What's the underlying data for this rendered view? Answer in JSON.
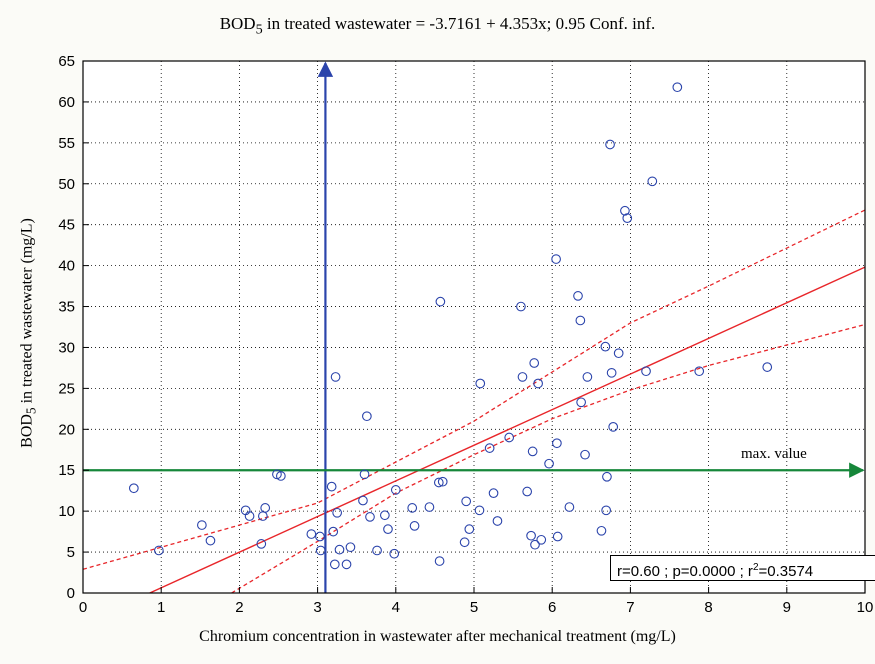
{
  "chart_data": {
    "type": "scatter",
    "title": {
      "prefix": "BOD",
      "sub": "5",
      "suffix": " in treated wastewater = -3.7161 + 4.353x; 0.95 Conf. inf."
    },
    "xlabel": "Chromium concentration in wastewater after mechanical treatment (mg/L)",
    "ylabel": {
      "prefix": "BOD",
      "sub": "5",
      "suffix": " in treated wastewater (mg/L)"
    },
    "xlim": [
      0,
      10
    ],
    "ylim": [
      0,
      65
    ],
    "xticks": [
      0,
      1,
      2,
      3,
      4,
      5,
      6,
      7,
      8,
      9,
      10
    ],
    "yticks": [
      0,
      5,
      10,
      15,
      20,
      25,
      30,
      35,
      40,
      45,
      50,
      55,
      60,
      65
    ],
    "grid": true,
    "grid_style": "dotted",
    "regression": {
      "intercept": -3.7161,
      "slope": 4.353,
      "color": "#e8262a"
    },
    "confidence_band": {
      "level": 0.95,
      "upper": [
        [
          0,
          2.9
        ],
        [
          3,
          11
        ],
        [
          5,
          21
        ],
        [
          6,
          27
        ],
        [
          7,
          33
        ],
        [
          8,
          37.5
        ],
        [
          10,
          46.8
        ]
      ],
      "lower": [
        [
          1.9,
          0
        ],
        [
          3,
          6.3
        ],
        [
          4,
          12.2
        ],
        [
          5,
          16.9
        ],
        [
          6,
          21.3
        ],
        [
          7,
          24.8
        ],
        [
          8,
          27.8
        ],
        [
          10,
          32.8
        ]
      ]
    },
    "reference_lines": {
      "vertical": {
        "x": 3.1,
        "color": "#2b44ab",
        "direction": "up"
      },
      "horizontal": {
        "y": 15,
        "color": "#16873a",
        "label": "max. value",
        "direction": "right"
      }
    },
    "stats_box": {
      "text": "r=0.60 ; p=0.0000 ; r",
      "sup": "2",
      "value": "=0.3574",
      "position": "bottom-right"
    },
    "marker_color": "#2b44ab",
    "points": [
      [
        0.65,
        12.8
      ],
      [
        0.97,
        5.2
      ],
      [
        1.52,
        8.3
      ],
      [
        1.63,
        6.4
      ],
      [
        2.08,
        10.1
      ],
      [
        2.13,
        9.4
      ],
      [
        2.28,
        6.0
      ],
      [
        2.3,
        9.4
      ],
      [
        2.33,
        10.4
      ],
      [
        2.48,
        14.5
      ],
      [
        2.53,
        14.3
      ],
      [
        2.92,
        7.2
      ],
      [
        3.03,
        6.9
      ],
      [
        3.04,
        5.2
      ],
      [
        3.18,
        13.0
      ],
      [
        3.2,
        7.5
      ],
      [
        3.22,
        3.5
      ],
      [
        3.23,
        26.4
      ],
      [
        3.25,
        9.8
      ],
      [
        3.28,
        5.3
      ],
      [
        3.37,
        3.5
      ],
      [
        3.42,
        5.6
      ],
      [
        3.58,
        11.3
      ],
      [
        3.6,
        14.5
      ],
      [
        3.63,
        21.6
      ],
      [
        3.67,
        9.3
      ],
      [
        3.76,
        5.2
      ],
      [
        3.86,
        9.5
      ],
      [
        3.9,
        7.8
      ],
      [
        3.98,
        4.8
      ],
      [
        4.0,
        12.6
      ],
      [
        4.21,
        10.4
      ],
      [
        4.24,
        8.2
      ],
      [
        4.43,
        10.5
      ],
      [
        4.55,
        13.5
      ],
      [
        4.56,
        3.9
      ],
      [
        4.57,
        35.6
      ],
      [
        4.6,
        13.6
      ],
      [
        4.88,
        6.2
      ],
      [
        4.9,
        11.2
      ],
      [
        4.94,
        7.8
      ],
      [
        5.07,
        10.1
      ],
      [
        5.08,
        25.6
      ],
      [
        5.2,
        17.7
      ],
      [
        5.25,
        12.2
      ],
      [
        5.3,
        8.8
      ],
      [
        5.45,
        19.0
      ],
      [
        5.6,
        35.0
      ],
      [
        5.62,
        26.4
      ],
      [
        5.68,
        12.4
      ],
      [
        5.73,
        7.0
      ],
      [
        5.75,
        17.3
      ],
      [
        5.77,
        28.1
      ],
      [
        5.78,
        5.9
      ],
      [
        5.82,
        25.6
      ],
      [
        5.86,
        6.5
      ],
      [
        5.96,
        15.8
      ],
      [
        6.05,
        40.8
      ],
      [
        6.06,
        18.3
      ],
      [
        6.07,
        6.9
      ],
      [
        6.22,
        10.5
      ],
      [
        6.33,
        36.3
      ],
      [
        6.36,
        33.3
      ],
      [
        6.37,
        23.3
      ],
      [
        6.42,
        16.9
      ],
      [
        6.45,
        26.4
      ],
      [
        6.63,
        7.6
      ],
      [
        6.68,
        30.1
      ],
      [
        6.69,
        10.1
      ],
      [
        6.7,
        14.2
      ],
      [
        6.74,
        54.8
      ],
      [
        6.76,
        26.9
      ],
      [
        6.78,
        20.3
      ],
      [
        6.85,
        29.3
      ],
      [
        6.93,
        46.7
      ],
      [
        6.96,
        45.8
      ],
      [
        7.2,
        27.1
      ],
      [
        7.28,
        50.3
      ],
      [
        7.6,
        61.8
      ],
      [
        7.88,
        27.1
      ],
      [
        8.75,
        27.6
      ]
    ]
  }
}
